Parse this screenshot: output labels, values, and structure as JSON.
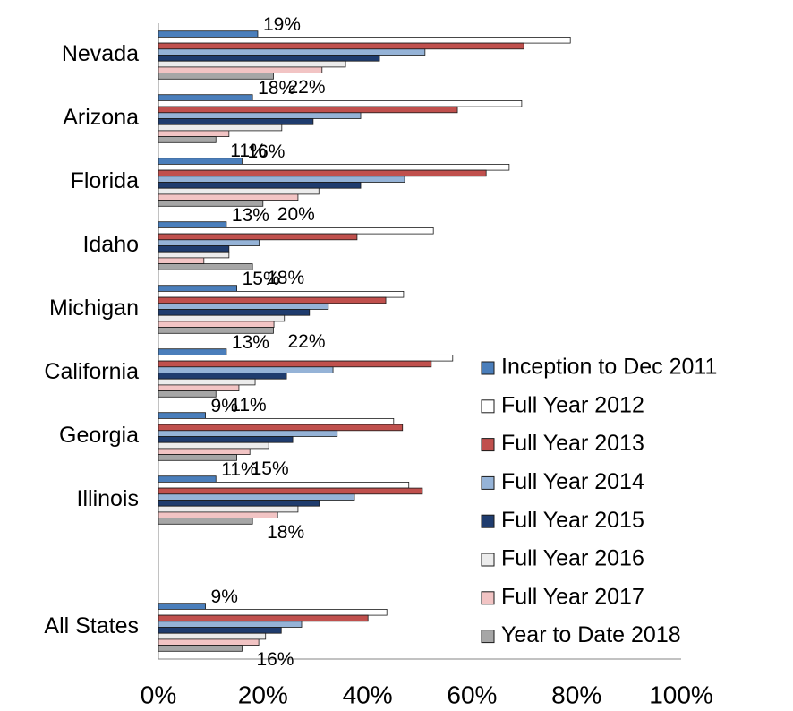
{
  "chart_data": {
    "type": "bar",
    "orientation": "horizontal",
    "categories": [
      "Nevada",
      "Arizona",
      "Florida",
      "Idaho",
      "Michigan",
      "California",
      "Georgia",
      "Illinois",
      null,
      "All States"
    ],
    "series": [
      {
        "name": "Inception to Dec 2011",
        "color": "#4a7ebb",
        "values": [
          19,
          18,
          16,
          13,
          15,
          13,
          9,
          11,
          null,
          9
        ],
        "value_labels": [
          "19%",
          "18%",
          "16%",
          "13%",
          "15%",
          "13%",
          "9%",
          "11%",
          null,
          "9%"
        ]
      },
      {
        "name": "Full Year 2012",
        "color": "#ffffff",
        "values": [
          78.8,
          69.5,
          67.1,
          52.6,
          46.9,
          56.3,
          45,
          47.9,
          null,
          43.7
        ]
      },
      {
        "name": "Full Year 2013",
        "color": "#c0504d",
        "values": [
          69.9,
          57.2,
          62.7,
          38,
          43.5,
          52.2,
          46.7,
          50.5,
          null,
          40.1
        ]
      },
      {
        "name": "Full Year 2014",
        "color": "#95b3d7",
        "values": [
          51,
          38.7,
          47.1,
          19.3,
          32.5,
          33.4,
          34.2,
          37.5,
          null,
          27.4
        ]
      },
      {
        "name": "Full Year 2015",
        "color": "#1f3c6e",
        "values": [
          42.3,
          29.6,
          38.7,
          13.5,
          28.9,
          24.5,
          25.7,
          30.8,
          null,
          23.5
        ]
      },
      {
        "name": "Full Year 2016",
        "color": "#ececec",
        "values": [
          35.8,
          23.6,
          30.7,
          13.5,
          24.1,
          18.5,
          21.1,
          26.7,
          null,
          20.5
        ]
      },
      {
        "name": "Full Year 2017",
        "color": "#f2c4c4",
        "values": [
          31.3,
          13.5,
          26.7,
          8.7,
          22.1,
          15.4,
          17.5,
          22.8,
          null,
          19.2
        ]
      },
      {
        "name": "Year to Date 2018",
        "color": "#a6a6a6",
        "values": [
          22,
          11,
          20,
          18,
          22,
          11,
          15,
          18,
          null,
          16
        ],
        "value_labels": [
          "22%",
          "11%",
          "20%",
          "18%",
          "22%",
          "11%",
          "15%",
          "18%",
          null,
          "16%"
        ]
      }
    ],
    "xlim": [
      0,
      100
    ],
    "xticks": [
      {
        "value": 0,
        "label": "0%"
      },
      {
        "value": 20,
        "label": "20%"
      },
      {
        "value": 40,
        "label": "40%"
      },
      {
        "value": 60,
        "label": "60%"
      },
      {
        "value": 80,
        "label": "80%"
      },
      {
        "value": 100,
        "label": "100%"
      }
    ],
    "grid": false,
    "legend": "right"
  }
}
